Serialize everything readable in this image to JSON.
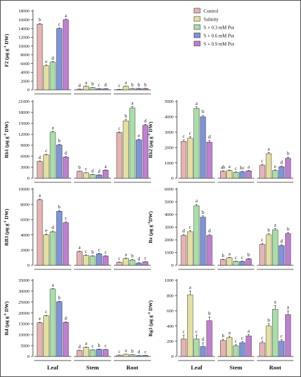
{
  "chart_data": {
    "type": "bar",
    "legend": {
      "placement": "top-right",
      "entries": [
        "Control",
        "Salinity",
        "S + 0.3 mM Put",
        "S + 0.6 mM Put",
        "S + 0.9 mM Put"
      ]
    },
    "colors": [
      "#E6B3B3",
      "#E3E0A0",
      "#A8DFA8",
      "#7F93DB",
      "#C07FD0"
    ],
    "categories": [
      "Leaf",
      "Stem",
      "Root"
    ],
    "panels": [
      {
        "id": "f2",
        "ylabel_main": "F2",
        "ylabel_unit": " (µg g",
        "ylabel_sup": "-1",
        "ylabel_tail": " DW)",
        "ylim": [
          0,
          18000
        ],
        "yticks": [
          0,
          2000,
          4000,
          6000,
          8000,
          10000,
          12000,
          14000,
          16000,
          18000
        ],
        "values": [
          [
            15000,
            5500,
            6300,
            14000,
            16000
          ],
          [
            150,
            800,
            500,
            250,
            250
          ],
          [
            100,
            800,
            300,
            300,
            300
          ]
        ],
        "errors": [
          [
            150,
            150,
            150,
            150,
            150
          ],
          [
            40,
            60,
            40,
            40,
            40
          ],
          [
            30,
            50,
            40,
            40,
            40
          ]
        ],
        "letters": [
          [
            "b",
            "e",
            "d",
            "c",
            "a"
          ],
          [
            "d",
            "a",
            "b",
            "c",
            "d"
          ],
          [
            "c",
            "a",
            "b",
            "b",
            "b"
          ]
        ],
        "show_xlabels": false
      },
      {
        "id": "rb1",
        "ylabel_main": "Rb1",
        "ylabel_unit": " (µg g",
        "ylabel_sup": "-1",
        "ylabel_tail": " DW)",
        "ylim": [
          0,
          21000
        ],
        "yticks": [
          0,
          3000,
          6000,
          9000,
          12000,
          15000,
          18000,
          21000
        ],
        "values": [
          [
            4600,
            6400,
            12600,
            9100,
            5800
          ],
          [
            1900,
            1500,
            1000,
            900,
            2200
          ],
          [
            12500,
            15700,
            19200,
            10500,
            14500
          ]
        ],
        "errors": [
          [
            120,
            150,
            200,
            150,
            120
          ],
          [
            60,
            60,
            60,
            60,
            80
          ],
          [
            200,
            300,
            400,
            200,
            250
          ]
        ],
        "letters": [
          [
            "d",
            "c",
            "a",
            "b",
            "d"
          ],
          [
            "b",
            "c",
            "d",
            "d",
            "a"
          ],
          [
            "c",
            "b",
            "a",
            "e",
            "d"
          ]
        ],
        "show_xlabels": false
      },
      {
        "id": "rb2",
        "ylabel_main": "Rb2",
        "ylabel_unit": " (µg g",
        "ylabel_sup": "-1",
        "ylabel_tail": " DW)",
        "ylim": [
          0,
          5000
        ],
        "yticks": [
          0,
          1000,
          2000,
          3000,
          4000,
          5000
        ],
        "values": [
          [
            2400,
            2600,
            4550,
            4000,
            2350
          ],
          [
            450,
            500,
            380,
            420,
            480
          ],
          [
            850,
            1600,
            500,
            750,
            1300
          ]
        ],
        "errors": [
          [
            100,
            100,
            100,
            100,
            100
          ],
          [
            30,
            30,
            30,
            30,
            30
          ],
          [
            50,
            80,
            40,
            50,
            80
          ]
        ],
        "letters": [
          [
            "c",
            "c",
            "a",
            "b",
            "d"
          ],
          [
            "ab",
            "a",
            "c",
            "bc",
            "a"
          ],
          [
            "c",
            "a",
            "e",
            "d",
            "b"
          ]
        ],
        "show_xlabels": false
      },
      {
        "id": "rb3",
        "ylabel_main": "RB3",
        "ylabel_unit": " (µg g",
        "ylabel_sup": "-1",
        "ylabel_tail": " DW)",
        "ylim": [
          0,
          10000
        ],
        "yticks": [
          0,
          2000,
          4000,
          6000,
          8000,
          10000
        ],
        "values": [
          [
            8600,
            4000,
            4400,
            7100,
            5600
          ],
          [
            1800,
            1300,
            1200,
            1500,
            1200
          ],
          [
            400,
            900,
            700,
            300,
            450
          ]
        ],
        "errors": [
          [
            120,
            100,
            100,
            100,
            100
          ],
          [
            80,
            60,
            60,
            60,
            60
          ],
          [
            50,
            60,
            50,
            40,
            40
          ]
        ],
        "letters": [
          [
            "a",
            "e",
            "d",
            "b",
            "c"
          ],
          [
            "a",
            "c",
            "b",
            "c",
            "c"
          ],
          [
            "c",
            "a",
            "b",
            "d",
            "c"
          ]
        ],
        "show_xlabels": false
      },
      {
        "id": "re",
        "ylabel_main": "Re",
        "ylabel_unit": " (µg g",
        "ylabel_sup": "-1",
        "ylabel_tail": "DW)",
        "ylim": [
          0,
          6000
        ],
        "yticks": [
          0,
          1000,
          2000,
          3000,
          4000,
          5000,
          6000
        ],
        "values": [
          [
            2350,
            2650,
            4700,
            3800,
            2350
          ],
          [
            450,
            600,
            300,
            300,
            500
          ],
          [
            1650,
            2400,
            2800,
            1550,
            2500
          ]
        ],
        "errors": [
          [
            80,
            80,
            100,
            100,
            80
          ],
          [
            30,
            30,
            30,
            30,
            30
          ],
          [
            80,
            100,
            100,
            80,
            80
          ]
        ],
        "letters": [
          [
            "d",
            "c",
            "a",
            "b",
            "d"
          ],
          [
            "b",
            "a",
            "c",
            "c",
            "b"
          ],
          [
            "c",
            "b",
            "a",
            "d",
            "b"
          ]
        ],
        "show_xlabels": false
      },
      {
        "id": "rd",
        "ylabel_main": "Rd",
        "ylabel_unit": " (µg g",
        "ylabel_sup": "-1",
        "ylabel_tail": " DW)",
        "ylim": [
          0,
          35000
        ],
        "yticks": [
          0,
          5000,
          10000,
          15000,
          20000,
          25000,
          30000,
          35000
        ],
        "values": [
          [
            15500,
            18700,
            31000,
            25200,
            15700
          ],
          [
            2800,
            4200,
            3000,
            3300,
            3200
          ],
          [
            600,
            1000,
            800,
            400,
            500
          ]
        ],
        "errors": [
          [
            200,
            200,
            250,
            200,
            200
          ],
          [
            100,
            150,
            100,
            100,
            100
          ],
          [
            50,
            60,
            50,
            40,
            40
          ]
        ],
        "letters": [
          [
            "e",
            "c",
            "a",
            "b",
            "d"
          ],
          [
            "d",
            "a",
            "c",
            "b",
            "c"
          ],
          [
            "c",
            "a",
            "b",
            "d",
            "c"
          ]
        ],
        "show_xlabels": true
      },
      {
        "id": "rg3",
        "ylabel_main": "Rg3",
        "ylabel_unit": " (µg g",
        "ylabel_sup": "-1",
        "ylabel_tail": " DW)",
        "ylim": [
          0,
          1000
        ],
        "yticks": [
          0,
          200,
          400,
          600,
          800,
          1000
        ],
        "values": [
          [
            230,
            810,
            230,
            130,
            470
          ],
          [
            210,
            250,
            140,
            180,
            270
          ],
          [
            180,
            400,
            620,
            200,
            550
          ]
        ],
        "errors": [
          [
            50,
            50,
            50,
            50,
            50
          ],
          [
            15,
            15,
            15,
            15,
            20
          ],
          [
            20,
            30,
            50,
            20,
            50
          ]
        ],
        "letters": [
          [
            "c",
            "a",
            "c",
            "d",
            "b"
          ],
          [
            "b",
            "a",
            "c",
            "c",
            "a"
          ],
          [
            "c",
            "b",
            "a",
            "c",
            "a"
          ]
        ],
        "show_xlabels": true
      }
    ]
  }
}
